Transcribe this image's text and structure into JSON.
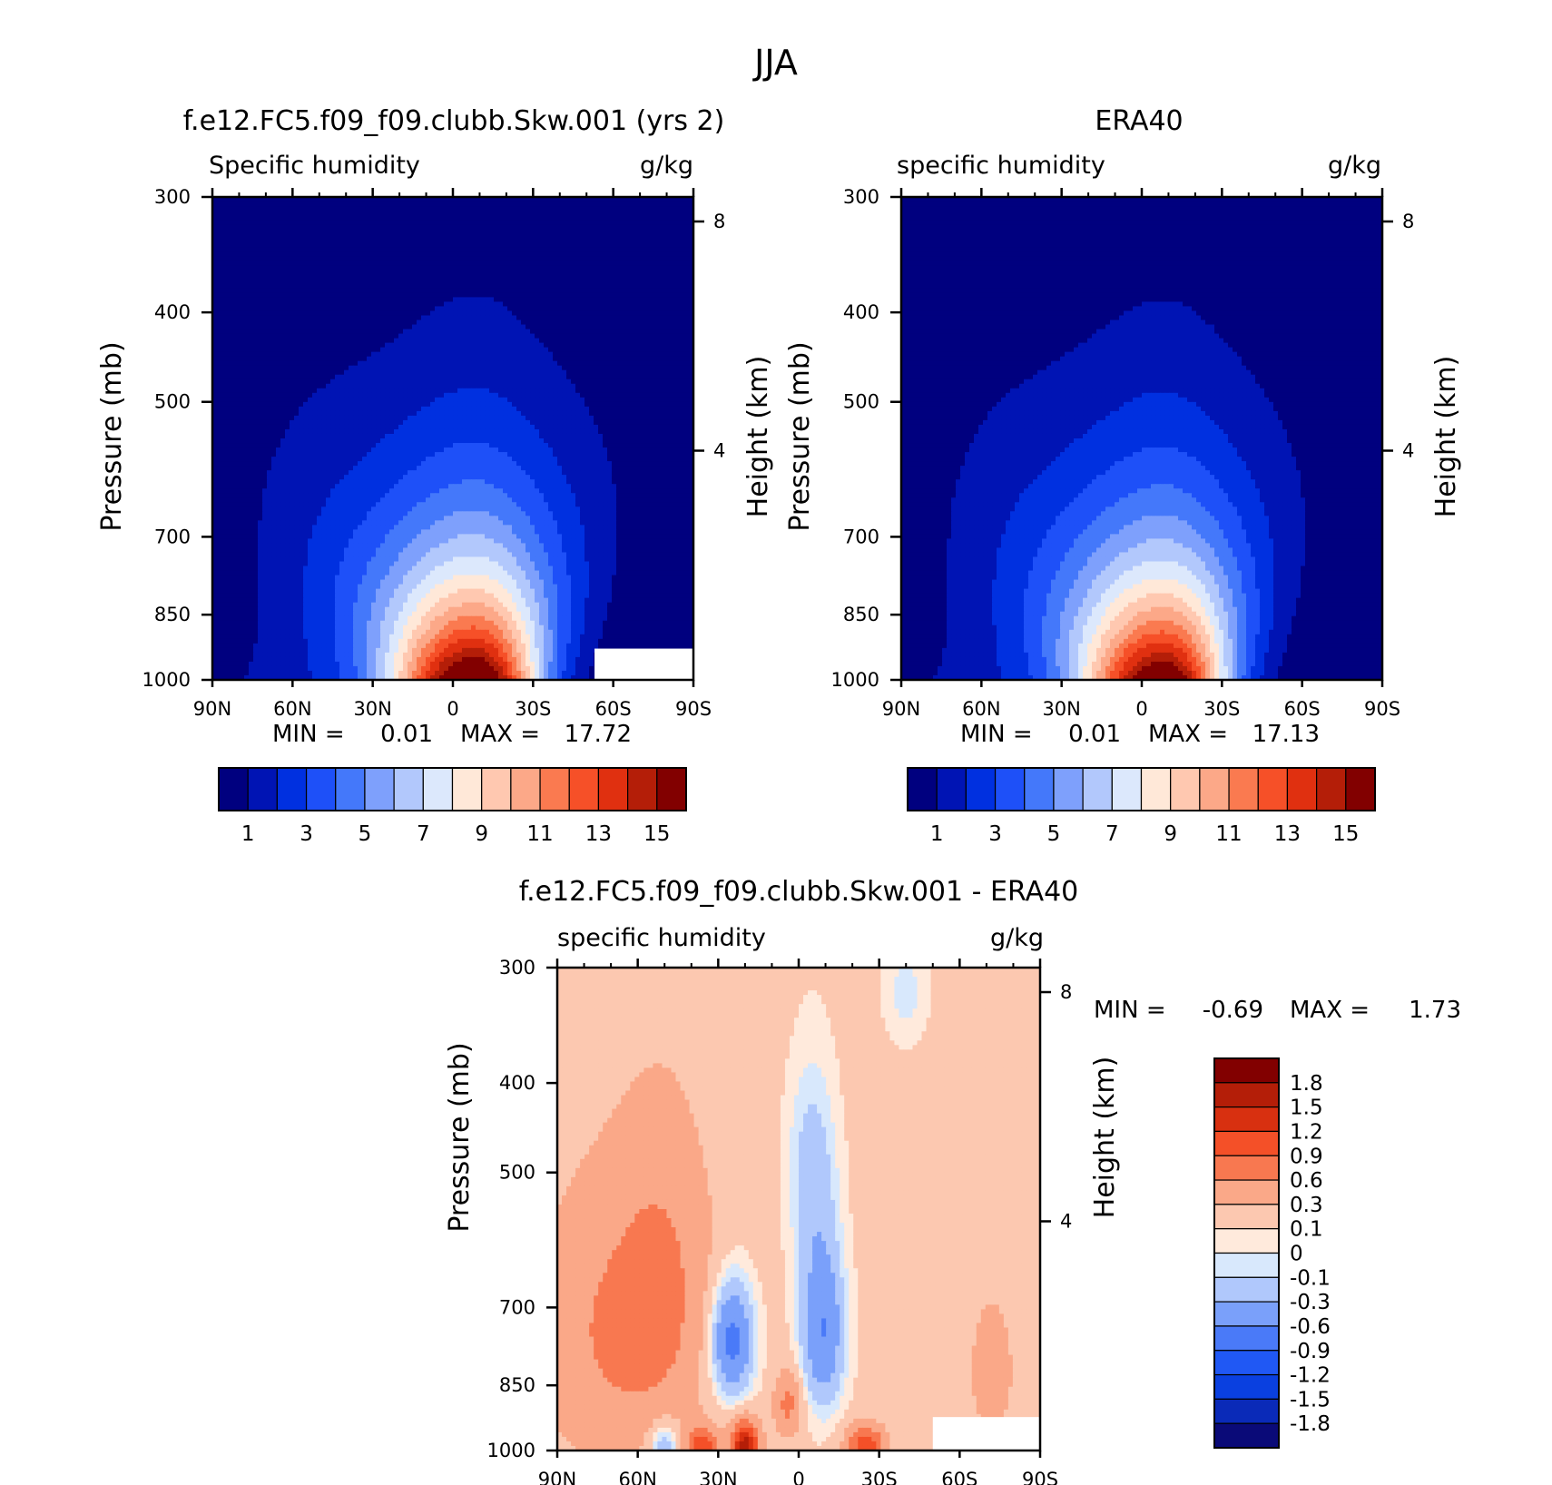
{
  "figure": {
    "title": "JJA",
    "palette": {
      "humidity": [
        "#00007f",
        "#0014b4",
        "#0030e0",
        "#1e50f8",
        "#4478fa",
        "#7ea0fc",
        "#b2c8fc",
        "#dce8fc",
        "#ffe8d8",
        "#ffc8b0",
        "#fca888",
        "#fa7a50",
        "#f65028",
        "#e03010",
        "#b41e08",
        "#820000"
      ],
      "difference": [
        "#0a0a78",
        "#0a2ab8",
        "#0a40e0",
        "#2058f4",
        "#4a7af8",
        "#7aa0fa",
        "#b0c8fc",
        "#d8e8fc",
        "#ffeadc",
        "#fcc8b0",
        "#faa888",
        "#f87850",
        "#f45028",
        "#d83010",
        "#b41e08",
        "#820000"
      ]
    }
  },
  "chart_data": [
    {
      "type": "heatmap",
      "id": "model",
      "title": "f.e12.FC5.f09_f09.clubb.Skw.001 (yrs 2)",
      "variable_label": "Specific humidity",
      "units": "g/kg",
      "ylabel": "Pressure (mb)",
      "ylabel_right": "Height (km)",
      "x_ticks": [
        "90N",
        "60N",
        "30N",
        "0",
        "30S",
        "60S",
        "90S"
      ],
      "x_values": [
        90,
        60,
        30,
        0,
        -30,
        -60,
        -90
      ],
      "y_ticks": [
        300,
        400,
        500,
        700,
        850,
        1000
      ],
      "y_right_ticks": [
        8,
        4
      ],
      "ylim": [
        300,
        1000
      ],
      "xlim": [
        90,
        -90
      ],
      "log_pressure": true,
      "stats": {
        "min_label": "MIN =",
        "min": "0.01",
        "max_label": "MAX =",
        "max": "17.72"
      },
      "colorbar_labels": [
        "1",
        "3",
        "5",
        "7",
        "9",
        "11",
        "13",
        "15"
      ],
      "contour_levels": [
        1,
        2,
        3,
        4,
        5,
        6,
        7,
        8,
        9,
        10,
        11,
        12,
        13,
        14,
        15
      ],
      "peak_lat": -8,
      "surface_peak": 17.72,
      "missing_region": {
        "lat_from": -53,
        "lat_to": -90,
        "p_from": 925,
        "p_to": 1000
      }
    },
    {
      "type": "heatmap",
      "id": "obs",
      "title": "ERA40",
      "variable_label": "specific humidity",
      "units": "g/kg",
      "ylabel": "Pressure (mb)",
      "ylabel_right": "Height (km)",
      "x_ticks": [
        "90N",
        "60N",
        "30N",
        "0",
        "30S",
        "60S",
        "90S"
      ],
      "x_values": [
        90,
        60,
        30,
        0,
        -30,
        -60,
        -90
      ],
      "y_ticks": [
        300,
        400,
        500,
        700,
        850,
        1000
      ],
      "y_right_ticks": [
        8,
        4
      ],
      "ylim": [
        300,
        1000
      ],
      "xlim": [
        90,
        -90
      ],
      "log_pressure": true,
      "stats": {
        "min_label": "MIN =",
        "min": "0.01",
        "max_label": "MAX =",
        "max": "17.13"
      },
      "colorbar_labels": [
        "1",
        "3",
        "5",
        "7",
        "9",
        "11",
        "13",
        "15"
      ],
      "contour_levels": [
        1,
        2,
        3,
        4,
        5,
        6,
        7,
        8,
        9,
        10,
        11,
        12,
        13,
        14,
        15
      ],
      "peak_lat": -8,
      "surface_peak": 17.13
    },
    {
      "type": "heatmap",
      "id": "diff",
      "title": "f.e12.FC5.f09_f09.clubb.Skw.001 - ERA40",
      "variable_label": "specific humidity",
      "units": "g/kg",
      "ylabel": "Pressure (mb)",
      "ylabel_right": "Height (km)",
      "x_ticks": [
        "90N",
        "60N",
        "30N",
        "0",
        "30S",
        "60S",
        "90S"
      ],
      "x_values": [
        90,
        60,
        30,
        0,
        -30,
        -60,
        -90
      ],
      "y_ticks": [
        300,
        400,
        500,
        700,
        850,
        1000
      ],
      "y_right_ticks": [
        8,
        4
      ],
      "ylim": [
        300,
        1000
      ],
      "xlim": [
        90,
        -90
      ],
      "log_pressure": true,
      "stats": {
        "min_label": "MIN =",
        "min": "-0.69",
        "max_label": "MAX =",
        "max": "1.73"
      },
      "colorbar_labels": [
        "1.8",
        "1.5",
        "1.2",
        "0.9",
        "0.6",
        "0.3",
        "0.1",
        "0",
        "-0.1",
        "-0.3",
        "-0.6",
        "-0.9",
        "-1.2",
        "-1.5",
        "-1.8"
      ],
      "contour_levels": [
        -1.8,
        -1.5,
        -1.2,
        -0.9,
        -0.6,
        -0.3,
        -0.1,
        0,
        0.1,
        0.3,
        0.6,
        0.9,
        1.2,
        1.5,
        1.8
      ],
      "missing_region": {
        "lat_from": -50,
        "lat_to": -90,
        "p_from": 920,
        "p_to": 1000
      }
    }
  ]
}
